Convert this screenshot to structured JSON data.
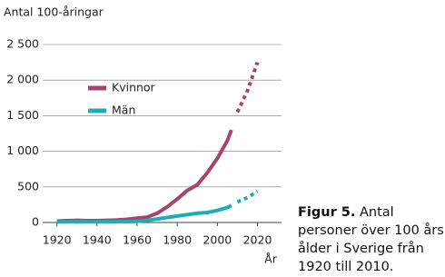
{
  "chart_data": {
    "type": "line",
    "title": "Antal 100-åringar",
    "xlabel": "År",
    "caption_label": "Figur 5.",
    "caption_lines": [
      "Antal",
      "personer över 100 års",
      "ålder i Sverige från",
      "1920 till 2010."
    ],
    "x": [
      1920,
      1925,
      1930,
      1935,
      1940,
      1945,
      1950,
      1955,
      1960,
      1965,
      1970,
      1975,
      1980,
      1985,
      1990,
      1995,
      2000,
      2005,
      2007,
      2010,
      2015,
      2020
    ],
    "projection_from": 2010,
    "series": [
      {
        "name": "Kvinnor",
        "color": "#a8436b",
        "values": [
          20,
          25,
          30,
          25,
          25,
          30,
          35,
          45,
          60,
          75,
          130,
          220,
          330,
          450,
          530,
          700,
          900,
          1150,
          1300,
          1550,
          1850,
          2250
        ]
      },
      {
        "name": "Män",
        "color": "#1aaeb8",
        "values": [
          10,
          10,
          10,
          10,
          10,
          10,
          12,
          12,
          15,
          30,
          50,
          70,
          90,
          110,
          130,
          140,
          170,
          210,
          240,
          290,
          350,
          440
        ]
      }
    ],
    "xlim": [
      1912,
      2032
    ],
    "xticks": [
      1920,
      1940,
      1960,
      1980,
      2000,
      2020
    ],
    "ylim": [
      0,
      2500
    ],
    "yticks": [
      0,
      500,
      {
        "value": 1000,
        "label": "1 000"
      },
      {
        "value": 1500,
        "label": "1 500"
      },
      {
        "value": 2000,
        "label": "2 000"
      },
      {
        "value": 2500,
        "label": "2 500"
      }
    ],
    "grid": true
  }
}
